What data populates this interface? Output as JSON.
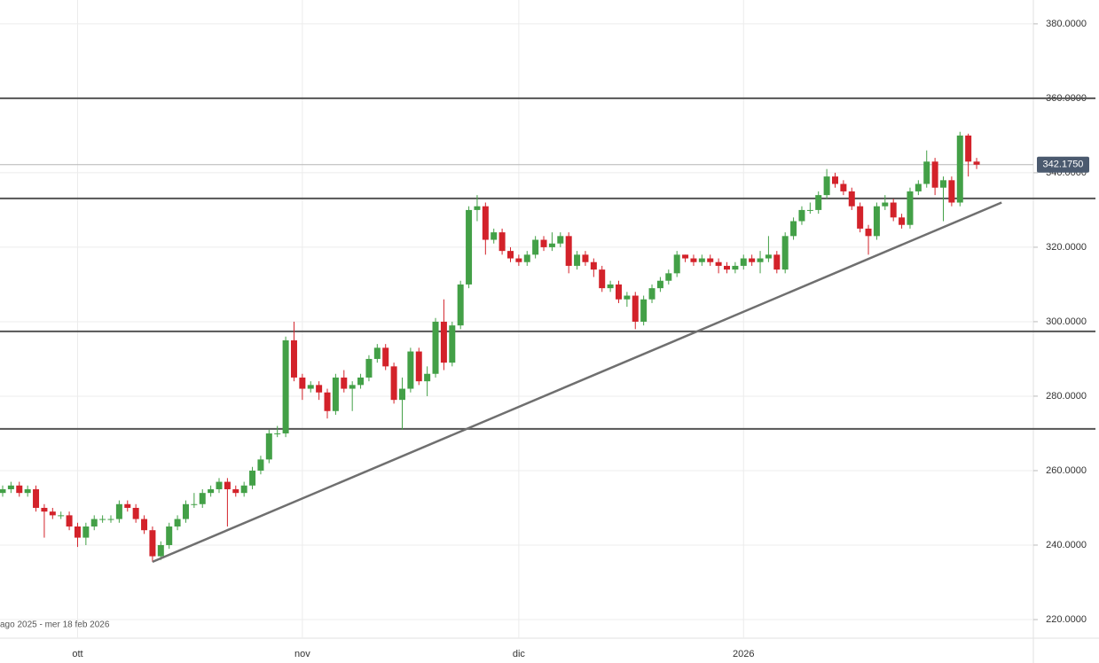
{
  "chart_data": {
    "type": "candlestick",
    "date_range": "ago 2025 - mer 18 feb 2026",
    "categories": [
      null,
      null,
      null,
      null,
      null,
      null,
      null,
      null,
      null,
      "ott",
      null,
      null,
      null,
      null,
      null,
      null,
      null,
      null,
      null,
      null,
      null,
      null,
      null,
      null,
      null,
      null,
      null,
      null,
      null,
      null,
      null,
      null,
      null,
      null,
      null,
      null,
      "nov",
      null,
      null,
      null,
      null,
      null,
      null,
      null,
      null,
      null,
      null,
      null,
      null,
      null,
      null,
      null,
      null,
      null,
      null,
      null,
      null,
      null,
      null,
      null,
      null,
      null,
      "dic",
      null,
      null,
      null,
      null,
      null,
      null,
      null,
      null,
      null,
      null,
      null,
      null,
      null,
      null,
      null,
      null,
      null,
      null,
      null,
      null,
      null,
      null,
      null,
      null,
      null,
      null,
      "2026",
      null,
      null,
      null,
      null,
      null,
      null,
      null,
      null,
      null,
      null,
      null,
      null,
      null,
      null,
      null,
      null,
      null,
      null,
      null,
      null,
      null,
      null,
      null,
      null,
      null,
      null,
      null,
      null
    ],
    "open": [
      254,
      255,
      256,
      254,
      255,
      250,
      249,
      248,
      248,
      245,
      242,
      245,
      247,
      247,
      247,
      251,
      250,
      247,
      244,
      237,
      240,
      245,
      247,
      251,
      251,
      254,
      255,
      257,
      255,
      254,
      256,
      260,
      263,
      270,
      270,
      295,
      285,
      282,
      283,
      281,
      276,
      285,
      282,
      283,
      285,
      290,
      293,
      288,
      279,
      282,
      292,
      284,
      286,
      300,
      289,
      299,
      310,
      330,
      331,
      322,
      324,
      319,
      317,
      316,
      318,
      322,
      320,
      321,
      323,
      315,
      318,
      316,
      314,
      309,
      310,
      306,
      307,
      300,
      306,
      309,
      311,
      313,
      318,
      317,
      316,
      317,
      316,
      315,
      314,
      315,
      317,
      316,
      317,
      318,
      314,
      323,
      327,
      330,
      330,
      334,
      339,
      337,
      335,
      331,
      325,
      323,
      331,
      332,
      328,
      326,
      335,
      337,
      343,
      336,
      338,
      332,
      350,
      343
    ],
    "high": [
      256,
      257,
      257,
      256,
      256,
      251,
      250,
      249,
      249,
      246,
      246,
      248,
      248,
      248,
      252,
      252,
      251,
      248,
      245,
      241,
      246,
      248,
      252,
      254,
      255,
      256,
      258,
      258,
      256,
      257,
      261,
      264,
      271,
      272,
      296,
      300,
      286,
      284,
      284,
      282,
      286,
      287,
      284,
      286,
      291,
      294,
      294,
      289,
      285,
      293,
      293,
      288,
      301,
      306,
      300,
      311,
      331,
      334,
      332,
      325,
      325,
      320,
      318,
      319,
      323,
      323,
      324,
      324,
      324,
      319,
      319,
      317,
      315,
      311,
      311,
      308,
      308,
      307,
      310,
      312,
      314,
      319,
      318,
      318,
      318,
      318,
      317,
      316,
      316,
      318,
      318,
      319,
      323,
      319,
      324,
      328,
      331,
      332,
      335,
      341,
      340,
      338,
      336,
      332,
      326,
      332,
      334,
      333,
      329,
      336,
      338,
      346,
      344,
      339,
      339,
      351,
      350.5,
      344
    ],
    "low": [
      253,
      254,
      253,
      253,
      249,
      242,
      247,
      247,
      244,
      239.5,
      240,
      244,
      246,
      246,
      246,
      249,
      246,
      243,
      235.5,
      236,
      239,
      244,
      246,
      250,
      250,
      253,
      254,
      245,
      253,
      253,
      255,
      259,
      262,
      269,
      269,
      284,
      279,
      281,
      279,
      274,
      275,
      281,
      276,
      282,
      284,
      289,
      287,
      278,
      271,
      281,
      283,
      280,
      285,
      287,
      288,
      298,
      309,
      327,
      318,
      321,
      318,
      316,
      315,
      315,
      317,
      319,
      319,
      320,
      313,
      314,
      315,
      312,
      308,
      308,
      305,
      304,
      298,
      299,
      305,
      308,
      310,
      312,
      316,
      315,
      315,
      315,
      313,
      313,
      313,
      314,
      315,
      313,
      316,
      313,
      313,
      322,
      326,
      329,
      329,
      333,
      336,
      334,
      330,
      324,
      318,
      322,
      330,
      327,
      325,
      325,
      334,
      336,
      334,
      327,
      331,
      331,
      339,
      341
    ],
    "close": [
      255,
      256,
      254,
      255,
      250,
      249,
      248,
      248,
      245,
      242,
      245,
      247,
      247,
      247,
      251,
      250,
      247,
      244,
      237,
      240,
      245,
      247,
      251,
      251,
      254,
      255,
      257,
      255,
      254,
      256,
      260,
      263,
      270,
      270,
      295,
      285,
      282,
      283,
      281,
      276,
      285,
      282,
      283,
      285,
      290,
      293,
      288,
      279,
      282,
      292,
      284,
      286,
      300,
      289,
      299,
      310,
      330,
      331,
      322,
      324,
      319,
      317,
      316,
      318,
      322,
      320,
      321,
      323,
      315,
      318,
      316,
      314,
      309,
      310,
      306,
      307,
      300,
      306,
      309,
      311,
      313,
      318,
      317,
      316,
      317,
      316,
      315,
      314,
      315,
      317,
      316,
      317,
      318,
      314,
      323,
      327,
      330,
      330,
      334,
      339,
      337,
      335,
      331,
      325,
      323,
      331,
      332,
      328,
      326,
      335,
      337,
      343,
      336,
      338,
      332,
      350,
      343,
      342.175
    ],
    "up_color": "#43a047",
    "down_color": "#d3222a",
    "ylim": [
      215,
      386.4
    ],
    "yticks": [
      {
        "value": 220,
        "label": "220.0000"
      },
      {
        "value": 240,
        "label": "240.0000"
      },
      {
        "value": 260,
        "label": "260.0000"
      },
      {
        "value": 280,
        "label": "280.0000"
      },
      {
        "value": 300,
        "label": "300.0000"
      },
      {
        "value": 320,
        "label": "320.0000"
      },
      {
        "value": 340,
        "label": "340.0000"
      },
      {
        "value": 360,
        "label": "360.0000"
      },
      {
        "value": 380,
        "label": "380.0000"
      }
    ],
    "grid": true,
    "levels": [
      360,
      333.1,
      297.4,
      271.2
    ],
    "trendline": {
      "x": [
        18,
        120
      ],
      "y": [
        235.5,
        332
      ]
    },
    "last_price": {
      "value": 342.175,
      "label": "342.1750"
    }
  }
}
